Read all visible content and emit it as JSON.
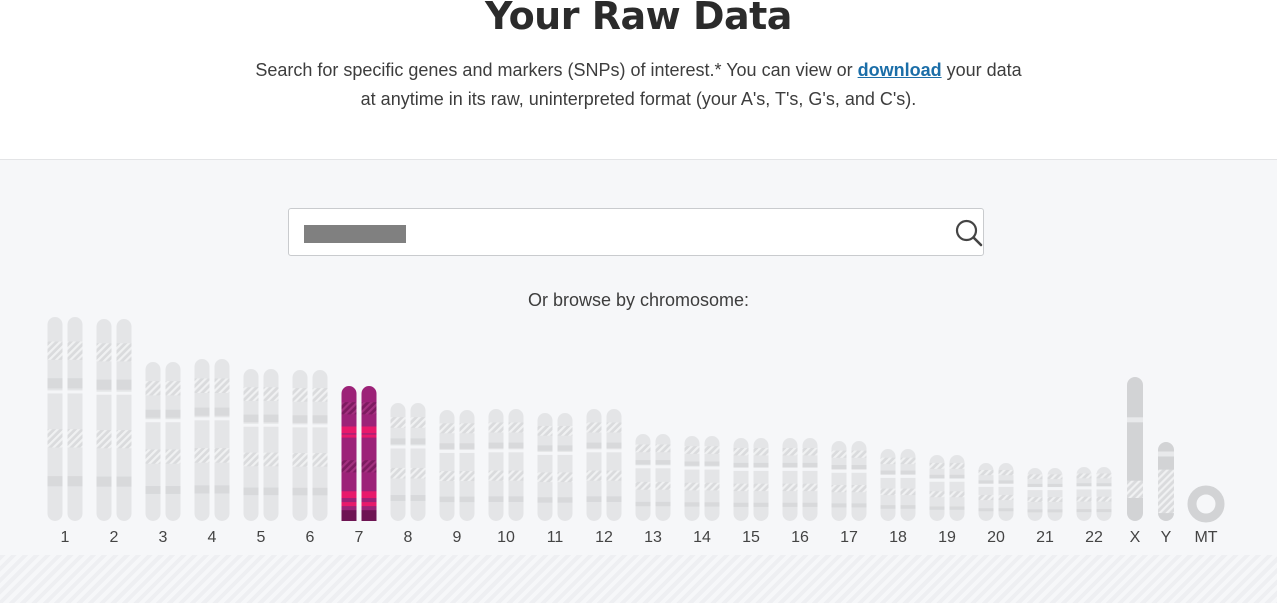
{
  "header": {
    "title": "Your Raw Data",
    "intro_part1": "Search for specific genes and markers (SNPs) of interest.* You can view or ",
    "download_link": "download",
    "intro_part2": " your data",
    "intro_line2": "at anytime in its raw, uninterpreted format (your A's, T's, G's, and C's)."
  },
  "search": {
    "value": "",
    "icon": "search-icon"
  },
  "browse": {
    "label": "Or browse by chromosome:"
  },
  "colors": {
    "selected": "#9c2278",
    "selected_band": "#e8196b",
    "autosome": "#e4e5e7",
    "autosome_band": "#d8d9db",
    "sex_chrom": "#d2d3d5",
    "link": "#1b6ea8"
  },
  "chromosomes": [
    {
      "label": "1",
      "selected": false
    },
    {
      "label": "2",
      "selected": false
    },
    {
      "label": "3",
      "selected": false
    },
    {
      "label": "4",
      "selected": false
    },
    {
      "label": "5",
      "selected": false
    },
    {
      "label": "6",
      "selected": false
    },
    {
      "label": "7",
      "selected": true
    },
    {
      "label": "8",
      "selected": false
    },
    {
      "label": "9",
      "selected": false
    },
    {
      "label": "10",
      "selected": false
    },
    {
      "label": "11",
      "selected": false
    },
    {
      "label": "12",
      "selected": false
    },
    {
      "label": "13",
      "selected": false
    },
    {
      "label": "14",
      "selected": false
    },
    {
      "label": "15",
      "selected": false
    },
    {
      "label": "16",
      "selected": false
    },
    {
      "label": "17",
      "selected": false
    },
    {
      "label": "18",
      "selected": false
    },
    {
      "label": "19",
      "selected": false
    },
    {
      "label": "20",
      "selected": false
    },
    {
      "label": "21",
      "selected": false
    },
    {
      "label": "22",
      "selected": false
    },
    {
      "label": "X",
      "selected": false
    },
    {
      "label": "Y",
      "selected": false
    },
    {
      "label": "MT",
      "selected": false
    }
  ]
}
